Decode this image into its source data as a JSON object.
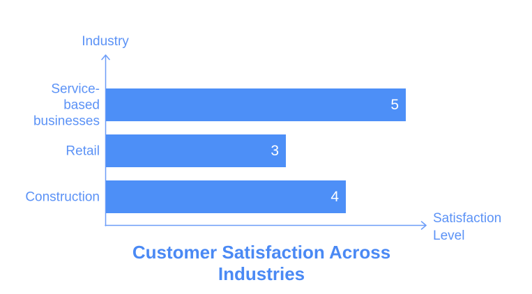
{
  "chart_data": {
    "type": "bar",
    "orientation": "horizontal",
    "title": "Customer Satisfaction Across Industries",
    "xlabel": "Satisfaction Level",
    "ylabel": "Industry",
    "categories": [
      "Service-based businesses",
      "Retail",
      "Construction"
    ],
    "category_display_lines": [
      [
        "Service-",
        "based",
        "businesses"
      ],
      [
        "Retail"
      ],
      [
        "Construction"
      ]
    ],
    "values": [
      5,
      3,
      4
    ],
    "xlim": [
      0,
      5
    ],
    "value_labels_shown": true,
    "legend_position": "none",
    "grid": false
  },
  "colors": {
    "bar": "#4D8FF7",
    "axis": "#6B9CF8",
    "text": "#5B92F6",
    "title": "#4A89F4",
    "value_label": "#FFFFFF",
    "background": "#FFFFFF"
  }
}
